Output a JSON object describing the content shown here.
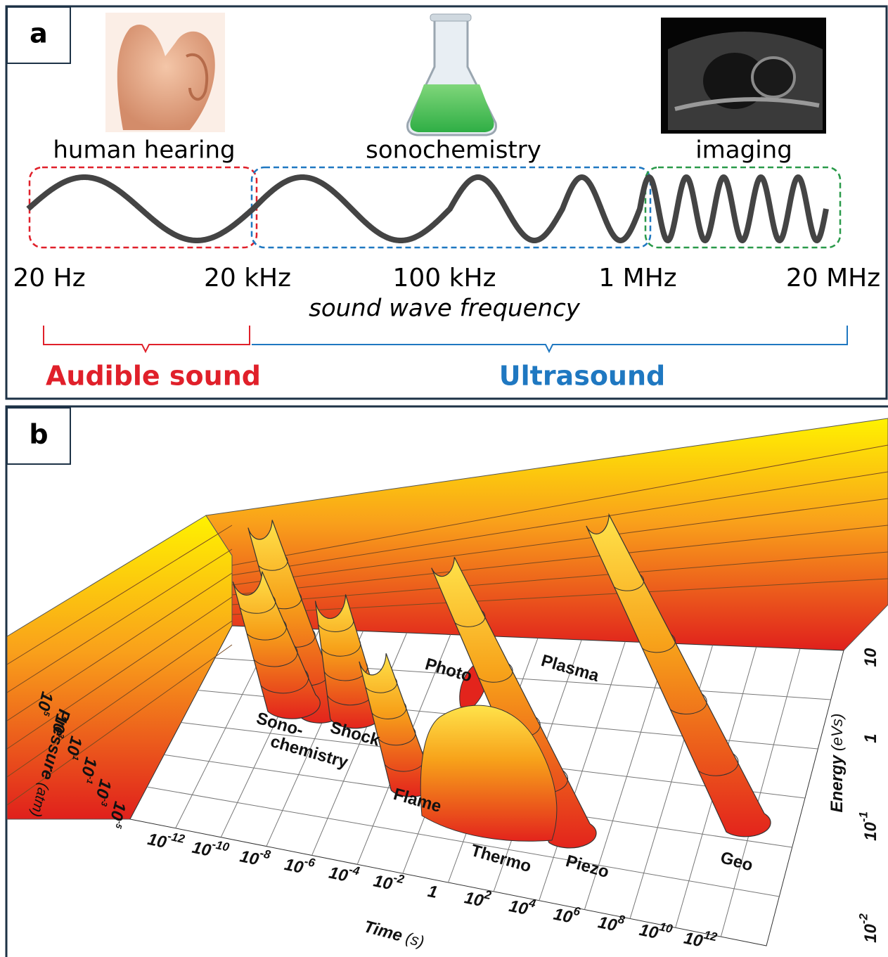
{
  "panel_a": {
    "label": "a",
    "icons": [
      "human hearing",
      "sonochemistry",
      "imaging"
    ],
    "frequencies": [
      "20 Hz",
      "20 kHz",
      "100 kHz",
      "1 MHz",
      "20 MHz"
    ],
    "axis_label": "sound wave frequency",
    "ranges": [
      "Audible sound",
      "Ultrasound"
    ]
  },
  "panel_b": {
    "label": "b",
    "regimes": [
      [
        "Sono-",
        "chemistry"
      ],
      [
        "Shock"
      ],
      [
        "Photo"
      ],
      [
        "Plasma"
      ],
      [
        "Flame"
      ],
      [
        "Thermo"
      ],
      [
        "Piezo"
      ],
      [
        "Geo"
      ]
    ],
    "time_axis": {
      "title": "Time",
      "unit": "(s)",
      "ticks": [
        {
          "base": "10",
          "exp": "-12"
        },
        {
          "base": "10",
          "exp": "-10"
        },
        {
          "base": "10",
          "exp": "-8"
        },
        {
          "base": "10",
          "exp": "-6"
        },
        {
          "base": "10",
          "exp": "-4"
        },
        {
          "base": "10",
          "exp": "-2"
        },
        {
          "base": "1"
        },
        {
          "base": "10",
          "exp": "2"
        },
        {
          "base": "10",
          "exp": "4"
        },
        {
          "base": "10",
          "exp": "6"
        },
        {
          "base": "10",
          "exp": "8"
        },
        {
          "base": "10",
          "exp": "10"
        },
        {
          "base": "10",
          "exp": "12"
        }
      ]
    },
    "pressure_axis": {
      "title": "Pressure",
      "unit": "(atm)",
      "ticks": [
        {
          "base": "10",
          "exp": "5"
        },
        {
          "base": "10",
          "exp": "3"
        },
        {
          "base": "10",
          "exp": "1"
        },
        {
          "base": "10",
          "exp": "-1"
        },
        {
          "base": "10",
          "exp": "-3"
        },
        {
          "base": "10",
          "exp": "-5"
        }
      ]
    },
    "energy_axis": {
      "title": "Energy",
      "unit": "(eVs)",
      "ticks": [
        {
          "base": "10"
        },
        {
          "base": "1"
        },
        {
          "base": "10",
          "exp": "-1"
        },
        {
          "base": "10",
          "exp": "-2"
        }
      ]
    }
  }
}
